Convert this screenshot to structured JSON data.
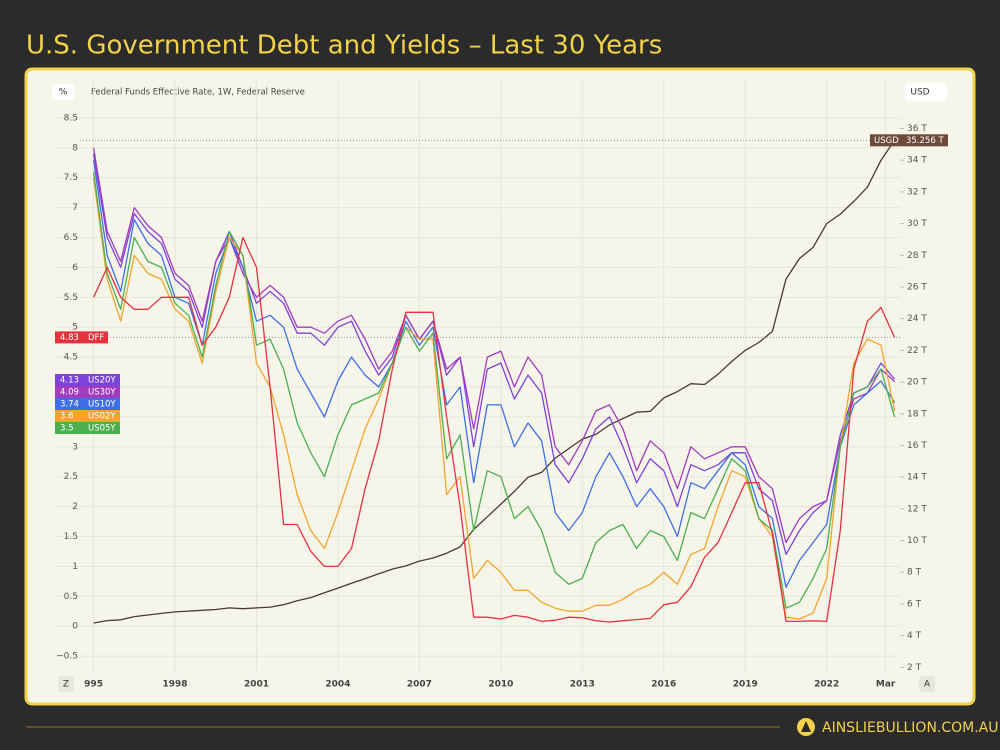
{
  "chart_data": {
    "type": "line",
    "title": "U.S. Government Debt and Yields – Last 30 Years",
    "subtitle": "Federal Funds Effective Rate, 1W, Federal Reserve",
    "y_label": "%",
    "y2_label": "USD",
    "x": [
      1995,
      1995.5,
      1996,
      1996.5,
      1997,
      1997.5,
      1998,
      1998.5,
      1999,
      1999.5,
      2000,
      2000.5,
      2001,
      2001.5,
      2002,
      2002.5,
      2003,
      2003.5,
      2004,
      2004.5,
      2005,
      2005.5,
      2006,
      2006.5,
      2007,
      2007.5,
      2008,
      2008.5,
      2009,
      2009.5,
      2010,
      2010.5,
      2011,
      2011.5,
      2012,
      2012.5,
      2013,
      2013.5,
      2014,
      2014.5,
      2015,
      2015.5,
      2016,
      2016.5,
      2017,
      2017.5,
      2018,
      2018.5,
      2019,
      2019.5,
      2020,
      2020.5,
      2021,
      2021.5,
      2022,
      2022.5,
      2023,
      2023.5,
      2024,
      2024.5
    ],
    "xlim": [
      1994.5,
      2024.7
    ],
    "xticks": [
      {
        "value": 1995,
        "label": "995"
      },
      1998,
      2001,
      2004,
      2007,
      2010,
      2013,
      2016,
      2019,
      2022,
      {
        "value": 2024.17,
        "label": "Mar"
      }
    ],
    "ylim": [
      -0.9,
      8.8
    ],
    "yticks": [
      {
        "value": -0.5,
        "label": "−0.5"
      },
      0,
      0.5,
      1,
      1.5,
      2,
      2.5,
      3,
      3.5,
      4,
      4.5,
      5,
      5.5,
      6,
      6.5,
      7,
      7.5,
      8,
      8.5
    ],
    "y2lim": [
      1.2,
      37.8
    ],
    "y2ticks": [
      {
        "value": 2,
        "label": "2 T"
      },
      {
        "value": 4,
        "label": "4 T"
      },
      {
        "value": 6,
        "label": "6 T"
      },
      {
        "value": 8,
        "label": "8 T"
      },
      {
        "value": 10,
        "label": "10 T"
      },
      {
        "value": 12,
        "label": "12 T"
      },
      {
        "value": 14,
        "label": "14 T"
      },
      {
        "value": 16,
        "label": "16 T"
      },
      {
        "value": 18,
        "label": "18 T"
      },
      {
        "value": 20,
        "label": "20 T"
      },
      {
        "value": 22,
        "label": "22 T"
      },
      {
        "value": 24,
        "label": "24 T"
      },
      {
        "value": 26,
        "label": "26 T"
      },
      {
        "value": 28,
        "label": "28 T"
      },
      {
        "value": 30,
        "label": "30 T"
      },
      {
        "value": 32,
        "label": "32 T"
      },
      {
        "value": 34,
        "label": "34 T"
      },
      {
        "value": 36,
        "label": "36 T"
      }
    ],
    "grid": true,
    "series": [
      {
        "name": "US20Y",
        "color": "#7c43d9",
        "values": [
          7.9,
          6.5,
          6.0,
          6.9,
          6.6,
          6.4,
          5.8,
          5.6,
          5.0,
          6.1,
          6.6,
          6.0,
          5.4,
          5.6,
          5.4,
          4.9,
          4.9,
          4.7,
          5.0,
          5.1,
          4.6,
          4.2,
          4.5,
          5.2,
          4.8,
          5.1,
          4.2,
          4.5,
          3.0,
          4.3,
          4.4,
          3.8,
          4.2,
          3.9,
          2.7,
          2.4,
          2.8,
          3.3,
          3.5,
          3.0,
          2.4,
          2.8,
          2.6,
          2.0,
          2.7,
          2.6,
          2.7,
          2.9,
          2.9,
          2.3,
          2.1,
          1.2,
          1.6,
          1.9,
          2.1,
          3.2,
          3.9,
          4.0,
          4.4,
          4.13
        ]
      },
      {
        "name": "US30Y",
        "color": "#a33bbf",
        "values": [
          8.0,
          6.6,
          6.1,
          7.0,
          6.7,
          6.5,
          5.9,
          5.7,
          5.1,
          6.1,
          6.5,
          5.9,
          5.5,
          5.7,
          5.5,
          5.0,
          5.0,
          4.9,
          5.1,
          5.2,
          4.8,
          4.3,
          4.6,
          5.2,
          4.8,
          5.1,
          4.3,
          4.5,
          3.3,
          4.5,
          4.6,
          4.0,
          4.5,
          4.2,
          3.0,
          2.7,
          3.1,
          3.6,
          3.7,
          3.3,
          2.6,
          3.1,
          2.9,
          2.3,
          3.0,
          2.8,
          2.9,
          3.0,
          3.0,
          2.5,
          2.3,
          1.4,
          1.8,
          2.0,
          2.1,
          3.1,
          3.8,
          3.9,
          4.3,
          4.09
        ]
      },
      {
        "name": "US10Y",
        "color": "#3f6fe6",
        "values": [
          7.8,
          6.2,
          5.6,
          6.8,
          6.4,
          6.2,
          5.5,
          5.4,
          4.7,
          5.9,
          6.5,
          6.0,
          5.1,
          5.2,
          5.0,
          4.3,
          3.9,
          3.5,
          4.1,
          4.5,
          4.2,
          4.0,
          4.4,
          5.1,
          4.7,
          5.0,
          3.7,
          4.0,
          2.4,
          3.7,
          3.7,
          3.0,
          3.4,
          3.1,
          1.9,
          1.6,
          1.9,
          2.5,
          2.9,
          2.5,
          2.0,
          2.3,
          2.0,
          1.5,
          2.4,
          2.3,
          2.6,
          2.9,
          2.7,
          2.0,
          1.8,
          0.65,
          1.1,
          1.4,
          1.7,
          3.0,
          3.7,
          3.9,
          4.1,
          3.74
        ]
      },
      {
        "name": "US02Y",
        "color": "#f3a42b",
        "values": [
          7.5,
          5.8,
          5.1,
          6.2,
          5.9,
          5.8,
          5.3,
          5.1,
          4.4,
          5.6,
          6.5,
          6.2,
          4.4,
          4.0,
          3.2,
          2.2,
          1.6,
          1.3,
          1.9,
          2.6,
          3.3,
          3.8,
          4.4,
          5.0,
          4.8,
          4.8,
          2.2,
          2.5,
          0.8,
          1.1,
          0.9,
          0.6,
          0.6,
          0.4,
          0.3,
          0.25,
          0.25,
          0.35,
          0.35,
          0.45,
          0.6,
          0.7,
          0.9,
          0.7,
          1.2,
          1.3,
          2.0,
          2.6,
          2.5,
          1.8,
          1.5,
          0.15,
          0.12,
          0.22,
          0.8,
          3.0,
          4.4,
          4.8,
          4.7,
          3.6
        ]
      },
      {
        "name": "US05Y",
        "color": "#4caf50",
        "values": [
          7.6,
          5.9,
          5.3,
          6.5,
          6.1,
          6.0,
          5.4,
          5.2,
          4.5,
          5.7,
          6.6,
          6.2,
          4.7,
          4.8,
          4.3,
          3.4,
          2.9,
          2.5,
          3.2,
          3.7,
          3.8,
          3.9,
          4.4,
          5.0,
          4.6,
          4.9,
          2.8,
          3.2,
          1.6,
          2.6,
          2.5,
          1.8,
          2.0,
          1.6,
          0.9,
          0.7,
          0.8,
          1.4,
          1.6,
          1.7,
          1.3,
          1.6,
          1.5,
          1.1,
          1.9,
          1.8,
          2.3,
          2.8,
          2.6,
          1.8,
          1.6,
          0.3,
          0.4,
          0.8,
          1.3,
          3.0,
          3.9,
          4.0,
          4.3,
          3.5
        ]
      },
      {
        "name": "DFF",
        "color": "#e5323f",
        "values": [
          5.5,
          6.0,
          5.5,
          5.3,
          5.3,
          5.5,
          5.5,
          5.5,
          4.7,
          5.0,
          5.5,
          6.5,
          6.0,
          4.0,
          1.7,
          1.7,
          1.25,
          1.0,
          1.0,
          1.3,
          2.3,
          3.1,
          4.3,
          5.25,
          5.25,
          5.25,
          3.5,
          2.0,
          0.15,
          0.15,
          0.12,
          0.18,
          0.15,
          0.08,
          0.1,
          0.15,
          0.14,
          0.09,
          0.07,
          0.09,
          0.11,
          0.13,
          0.36,
          0.4,
          0.66,
          1.15,
          1.4,
          1.9,
          2.4,
          2.4,
          1.55,
          0.08,
          0.08,
          0.09,
          0.08,
          1.6,
          4.3,
          5.1,
          5.33,
          4.83
        ]
      },
      {
        "name": "USGD",
        "color": "#4a3a30",
        "axis": "y2",
        "last_label": "35.256 T",
        "values": [
          4.8,
          4.95,
          5.0,
          5.2,
          5.3,
          5.4,
          5.5,
          5.55,
          5.6,
          5.65,
          5.75,
          5.7,
          5.75,
          5.8,
          5.95,
          6.2,
          6.4,
          6.7,
          7.0,
          7.3,
          7.6,
          7.9,
          8.2,
          8.4,
          8.7,
          8.9,
          9.2,
          9.6,
          10.7,
          11.5,
          12.3,
          13.1,
          14.0,
          14.3,
          15.2,
          15.8,
          16.4,
          16.7,
          17.3,
          17.7,
          18.1,
          18.15,
          19.0,
          19.4,
          19.9,
          19.85,
          20.5,
          21.3,
          22.0,
          22.5,
          23.2,
          26.5,
          27.8,
          28.5,
          30.0,
          30.6,
          31.4,
          32.3,
          34.0,
          35.256
        ]
      }
    ]
  },
  "ui": {
    "zoom_button": "Z",
    "auto_button": "A"
  },
  "footer": {
    "brand": "AINSLIEBULLION.COM.AU"
  }
}
